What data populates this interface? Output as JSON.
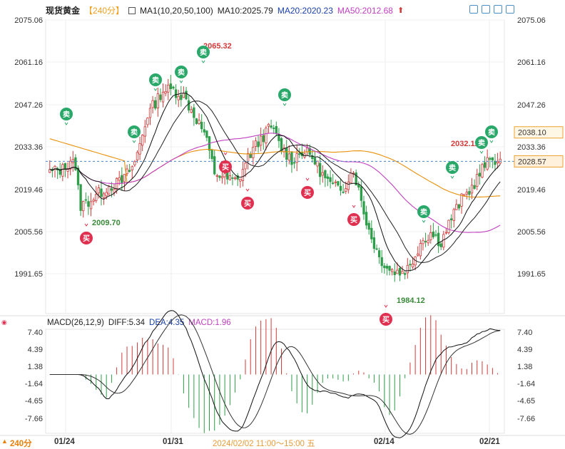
{
  "header": {
    "title": "现货黄金",
    "period": "【240分】",
    "ma_label": "MA1(10,20,50,100)",
    "ma10": "MA10:2025.79",
    "ma20": "MA20:2020.23",
    "ma50": "MA50:2012.68",
    "arrow": "⬆"
  },
  "macd_header": {
    "label": "MACD(26,12,9)",
    "diff": "DIFF:5.34",
    "dea": "DEA:4.35",
    "macd": "MACD:1.96"
  },
  "footer": {
    "period": "240分",
    "arrow": "▲",
    "date1": "01/24",
    "date2": "01/31",
    "mid_label": "2024/02/02 11:00～15:00 五",
    "date3": "02/14",
    "date4": "02/21"
  },
  "colors": {
    "up": "#d23a3a",
    "down": "#2e9e4a",
    "ma10": "#111111",
    "ma20": "#222222",
    "ma50": "#c040c0",
    "ma100": "#e8900a",
    "axis_text": "#333333",
    "sell_badge": "#2aa86a",
    "buy_badge": "#e03050",
    "diff_line": "#111111",
    "dea_line": "#333333",
    "orange_label": "#f0a030"
  },
  "chart_data": {
    "type": "candlestick",
    "price_axis_ticks": [
      "2075.06",
      "2061.16",
      "2047.26",
      "2033.36",
      "2019.46",
      "2005.56",
      "1991.65"
    ],
    "macd_axis_ticks": [
      "7.40",
      "4.39",
      "1.38",
      "-1.64",
      "-4.65",
      "-7.66"
    ],
    "ylim": [
      1981,
      2078
    ],
    "x_labels": [
      "01/24",
      "01/31",
      "02/14",
      "02/21"
    ],
    "annotations": [
      {
        "text": "2065.32",
        "type": "high"
      },
      {
        "text": "2009.70",
        "type": "low"
      },
      {
        "text": "1984.12",
        "type": "low"
      },
      {
        "text": "2032.11",
        "type": "high"
      }
    ],
    "price_labels": [
      {
        "text": "2038.10",
        "value": 2038.1
      },
      {
        "text": "2028.57",
        "value": 2028.57
      }
    ],
    "signals": [
      {
        "label": "卖",
        "kind": "sell"
      },
      {
        "label": "买",
        "kind": "buy"
      }
    ],
    "macd": {
      "diff_label": "DIFF",
      "dea_label": "DEA",
      "diff": 5.34,
      "dea": 4.35,
      "macd": 1.96
    }
  }
}
